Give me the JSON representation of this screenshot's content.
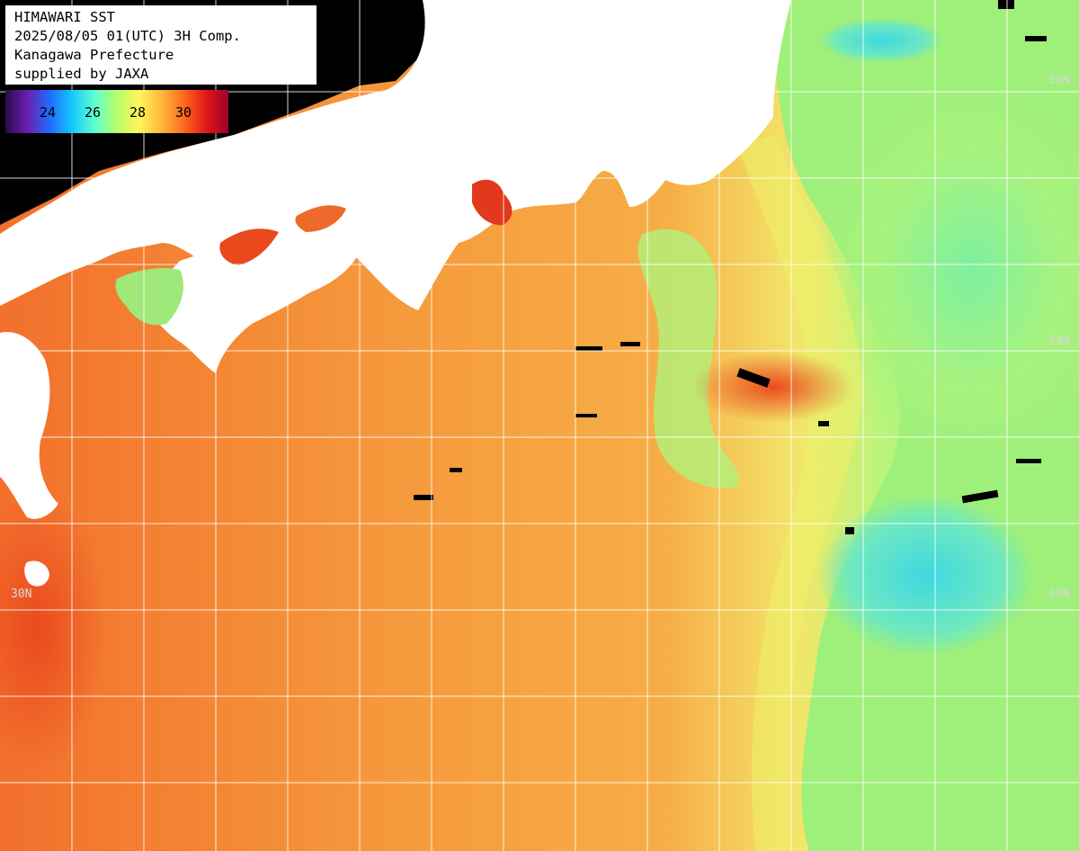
{
  "info": {
    "lines": [
      "HIMAWARI SST",
      "2025/08/05 01(UTC) 3H Comp.",
      "Kanagawa Prefecture",
      "supplied by JAXA"
    ]
  },
  "legend": {
    "ticks": [
      "24",
      "26",
      "28",
      "30"
    ],
    "colors": [
      "#2b0a4a",
      "#6a1fb0",
      "#1e6cff",
      "#16c8ff",
      "#5fffd0",
      "#b6ff6a",
      "#fff45a",
      "#ffb83a",
      "#ff6a1e",
      "#e01818",
      "#a0002a"
    ]
  },
  "lat_labels": {
    "n36_right": "36N",
    "n33_right": "33N",
    "n30_left": "30N",
    "n30_right": "30N"
  },
  "colors": {
    "ocean_warm": "#f59a3c",
    "ocean_hot": "#ef5a22",
    "ocean_cool": "#9ef07a",
    "ocean_cold": "#4ce0c8",
    "land": "#ffffff",
    "no_data": "#000000",
    "grid": "#ffffff"
  }
}
